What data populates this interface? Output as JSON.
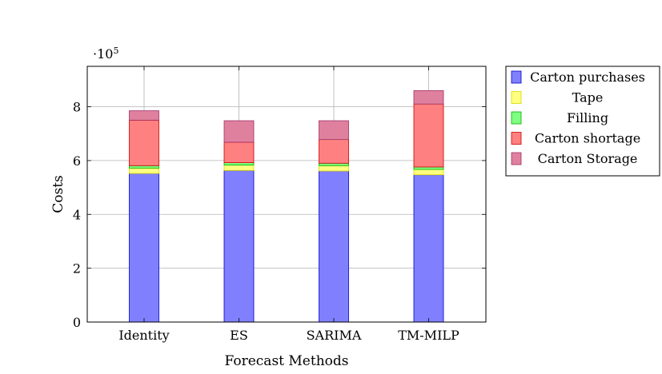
{
  "chart_data": {
    "type": "bar",
    "stacked": true,
    "title": "",
    "xlabel": "Forecast Methods",
    "ylabel": "Costs",
    "ylim": [
      0,
      9.5
    ],
    "yticks": [
      0,
      2,
      4,
      6,
      8
    ],
    "ytick_labels": [
      "0",
      "2",
      "4",
      "6",
      "8"
    ],
    "y_multiplier": "·10",
    "y_multiplier_exp": "5",
    "grid": true,
    "legend_placement": "outside-top-right",
    "categories": [
      "Identity",
      "ES",
      "SARIMA",
      "TM-MILP"
    ],
    "series": [
      {
        "name": "Carton purchases",
        "values": [
          5.52,
          5.63,
          5.61,
          5.47
        ],
        "fill": "#8080ff",
        "stroke": "#0000cc"
      },
      {
        "name": "Tape",
        "values": [
          0.2,
          0.2,
          0.2,
          0.2
        ],
        "fill": "#ffff80",
        "stroke": "#d8d800"
      },
      {
        "name": "Filling",
        "values": [
          0.09,
          0.09,
          0.09,
          0.09
        ],
        "fill": "#80ff80",
        "stroke": "#00b000"
      },
      {
        "name": "Carton shortage",
        "values": [
          1.69,
          0.76,
          0.88,
          2.34
        ],
        "fill": "#ff8080",
        "stroke": "#cc0000"
      },
      {
        "name": "Carton Storage",
        "values": [
          0.35,
          0.8,
          0.7,
          0.5
        ],
        "fill": "#df809f",
        "stroke": "#a03060"
      }
    ]
  }
}
